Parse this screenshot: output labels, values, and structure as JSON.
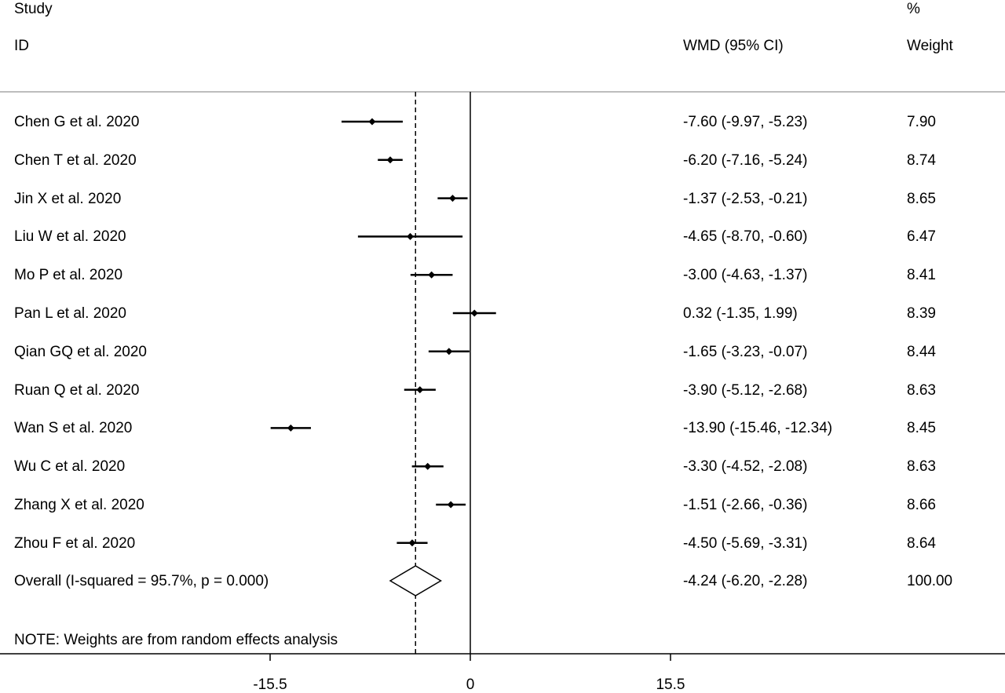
{
  "header": {
    "study_line1": "Study",
    "study_line2": "ID",
    "effect_label": "WMD (95% CI)",
    "weight_line1": "%",
    "weight_line2": "Weight"
  },
  "note": "NOTE: Weights are from random effects analysis",
  "chart_data": {
    "type": "forest",
    "effect_measure": "WMD (95% CI)",
    "x_ticks": [
      -15.5,
      0,
      15.5
    ],
    "x_tick_labels": [
      "-15.5",
      "0",
      "15.5"
    ],
    "null_line": 0,
    "overall_line": -4.24,
    "studies": [
      {
        "label": "Chen G et al. 2020",
        "estimate": -7.6,
        "lower": -9.97,
        "upper": -5.23,
        "ci_text": "-7.60 (-9.97, -5.23)",
        "weight": "7.90"
      },
      {
        "label": "Chen T et al. 2020",
        "estimate": -6.2,
        "lower": -7.16,
        "upper": -5.24,
        "ci_text": "-6.20 (-7.16, -5.24)",
        "weight": "8.74"
      },
      {
        "label": "Jin X et al. 2020",
        "estimate": -1.37,
        "lower": -2.53,
        "upper": -0.21,
        "ci_text": "-1.37 (-2.53, -0.21)",
        "weight": "8.65"
      },
      {
        "label": "Liu W et al. 2020",
        "estimate": -4.65,
        "lower": -8.7,
        "upper": -0.6,
        "ci_text": "-4.65 (-8.70, -0.60)",
        "weight": "6.47"
      },
      {
        "label": "Mo P et al. 2020",
        "estimate": -3.0,
        "lower": -4.63,
        "upper": -1.37,
        "ci_text": "-3.00 (-4.63, -1.37)",
        "weight": "8.41"
      },
      {
        "label": "Pan L et al. 2020",
        "estimate": 0.32,
        "lower": -1.35,
        "upper": 1.99,
        "ci_text": "0.32 (-1.35, 1.99)",
        "weight": "8.39"
      },
      {
        "label": "Qian GQ et al. 2020",
        "estimate": -1.65,
        "lower": -3.23,
        "upper": -0.07,
        "ci_text": "-1.65 (-3.23, -0.07)",
        "weight": "8.44"
      },
      {
        "label": "Ruan Q et al. 2020",
        "estimate": -3.9,
        "lower": -5.12,
        "upper": -2.68,
        "ci_text": "-3.90 (-5.12, -2.68)",
        "weight": "8.63"
      },
      {
        "label": "Wan S et al. 2020",
        "estimate": -13.9,
        "lower": -15.46,
        "upper": -12.34,
        "ci_text": "-13.90 (-15.46, -12.34)",
        "weight": "8.45"
      },
      {
        "label": "Wu C et al. 2020",
        "estimate": -3.3,
        "lower": -4.52,
        "upper": -2.08,
        "ci_text": "-3.30 (-4.52, -2.08)",
        "weight": "8.63"
      },
      {
        "label": "Zhang X et al. 2020",
        "estimate": -1.51,
        "lower": -2.66,
        "upper": -0.36,
        "ci_text": "-1.51 (-2.66, -0.36)",
        "weight": "8.66"
      },
      {
        "label": "Zhou F et al. 2020",
        "estimate": -4.5,
        "lower": -5.69,
        "upper": -3.31,
        "ci_text": "-4.50 (-5.69, -3.31)",
        "weight": "8.64"
      }
    ],
    "overall": {
      "label": "Overall  (I-squared = 95.7%, p = 0.000)",
      "estimate": -4.24,
      "lower": -6.2,
      "upper": -2.28,
      "ci_text": "-4.24 (-6.20, -2.28)",
      "weight": "100.00"
    }
  }
}
